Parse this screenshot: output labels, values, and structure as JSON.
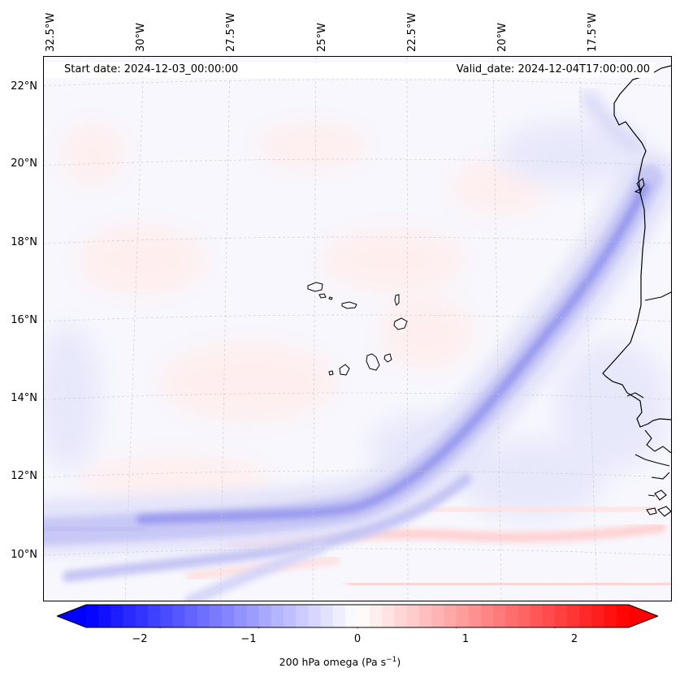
{
  "map": {
    "start_date": "Start date: 2024-12-03_00:00:00",
    "valid_date": "Valid_date: 2024-12-04T17:00:00.00",
    "longitude_labels": [
      "32.5°W",
      "30°W",
      "27.5°W",
      "25°W",
      "22.5°W",
      "20°W",
      "17.5°W"
    ],
    "latitude_labels": [
      "22°N",
      "20°N",
      "18°N",
      "16°N",
      "14°N",
      "12°N",
      "10°N"
    ],
    "field_variable": "200 hPa omega",
    "field_units_base": "Pa s",
    "field_units_exp": "−1",
    "colors": {
      "negative": "#0000ff",
      "zero": "#ffffff",
      "positive": "#ff0000",
      "coastline": "#000000"
    }
  },
  "colorbar": {
    "min": -2.75,
    "max": 2.75,
    "tick_values": [
      -2,
      -1,
      0,
      1,
      2
    ],
    "tick_labels": [
      "−2",
      "−1",
      "0",
      "1",
      "2"
    ]
  }
}
